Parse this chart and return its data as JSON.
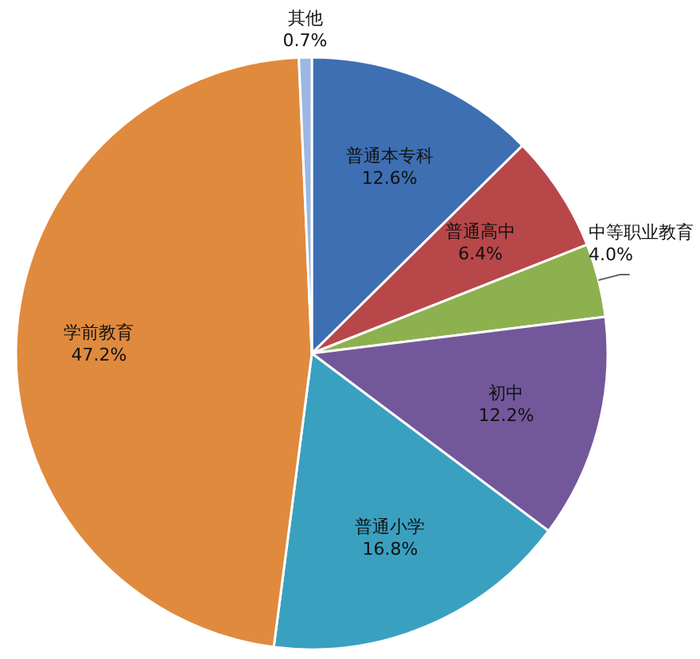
{
  "chart_data": {
    "type": "pie",
    "categories": [
      "普通本专科",
      "普通高中",
      "中等职业教育",
      "初中",
      "普通小学",
      "学前教育",
      "其他"
    ],
    "values": [
      12.6,
      6.4,
      4.0,
      12.2,
      16.8,
      47.2,
      0.7
    ],
    "value_labels": [
      "12.6%",
      "6.4%",
      "4.0%",
      "12.2%",
      "16.8%",
      "47.2%",
      "0.7%"
    ],
    "colors": [
      "#3d6fb2",
      "#b8474a",
      "#8db14f",
      "#72589a",
      "#3aa0c0",
      "#e08a3e",
      "#9ab8e2"
    ]
  }
}
